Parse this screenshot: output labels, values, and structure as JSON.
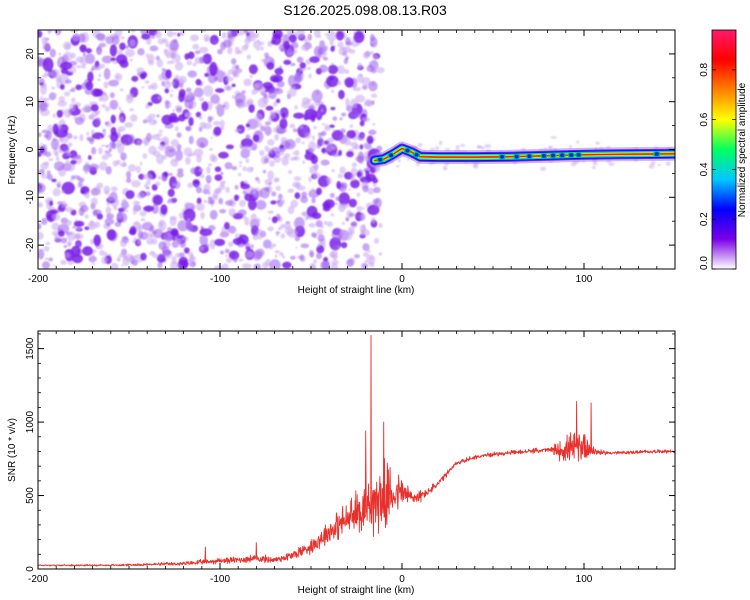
{
  "title": "S126.2025.098.08.13.R03",
  "colors": {
    "snr_line": "#e8302c",
    "noise": "#7a1ee8",
    "noise_light": "#c9a6f2",
    "frame": "#000000"
  },
  "chart_data": [
    {
      "type": "heatmap",
      "xlabel": "Height of straight line (km)",
      "ylabel": "Frequency (Hz)",
      "xlim": [
        -200,
        150
      ],
      "ylim": [
        -25,
        25
      ],
      "xticks": [
        -200,
        -100,
        0,
        100
      ],
      "xtick_labels": [
        "-200",
        "-100",
        "0",
        "100"
      ],
      "yticks": [
        -20,
        -10,
        0,
        10,
        20
      ],
      "ytick_labels": [
        "-20",
        "-10",
        "0",
        "10",
        "20"
      ],
      "colorbar": {
        "label": "Normalized spectral amplitude",
        "range": [
          0,
          0.96
        ],
        "ticks": [
          0,
          0.2,
          0.4,
          0.6,
          0.8
        ],
        "tick_labels": [
          "0.0",
          "0.2",
          "0.4",
          "0.6",
          "0.8"
        ],
        "colormap": [
          "#ffffff",
          "#7a00e6",
          "#0000ff",
          "#00c8ff",
          "#00ff60",
          "#ffff00",
          "#ff8000",
          "#ff0000",
          "#ff1a6e"
        ]
      },
      "noise_region_km": [
        -200,
        -15
      ],
      "signal_track": [
        {
          "km": -15,
          "hz": -2.3
        },
        {
          "km": -10,
          "hz": -2.0
        },
        {
          "km": -5,
          "hz": -1.0
        },
        {
          "km": 0,
          "hz": 0.2
        },
        {
          "km": 5,
          "hz": -0.5
        },
        {
          "km": 10,
          "hz": -1.5
        },
        {
          "km": 20,
          "hz": -1.6
        },
        {
          "km": 40,
          "hz": -1.6
        },
        {
          "km": 60,
          "hz": -1.5
        },
        {
          "km": 80,
          "hz": -1.3
        },
        {
          "km": 90,
          "hz": -1.2
        },
        {
          "km": 100,
          "hz": -1.1
        },
        {
          "km": 120,
          "hz": -1.0
        },
        {
          "km": 150,
          "hz": -0.9
        }
      ]
    },
    {
      "type": "line",
      "xlabel": "Height of straight line (km)",
      "ylabel": "SNR (10 * v/v)",
      "xlim": [
        -200,
        150
      ],
      "ylim": [
        0,
        1620
      ],
      "xticks": [
        -200,
        -100,
        0,
        100
      ],
      "xtick_labels": [
        "-200",
        "-100",
        "0",
        "100"
      ],
      "yticks": [
        0,
        500,
        1000,
        1500
      ],
      "ytick_labels": [
        "0",
        "500",
        "1000",
        "1500"
      ],
      "series": [
        {
          "x": [
            -200,
            -180,
            -160,
            -140,
            -120,
            -110,
            -100,
            -90,
            -80,
            -70,
            -60,
            -50,
            -40,
            -30,
            -25,
            -20,
            -15,
            -10,
            -5,
            0,
            5,
            10,
            15,
            20,
            25,
            30,
            40,
            50,
            60,
            70,
            80,
            85,
            90,
            95,
            100,
            105,
            110,
            120,
            130,
            140,
            150
          ],
          "y": [
            25,
            25,
            25,
            30,
            35,
            45,
            55,
            60,
            70,
            60,
            90,
            150,
            250,
            330,
            370,
            420,
            440,
            470,
            500,
            520,
            480,
            490,
            530,
            580,
            650,
            720,
            760,
            780,
            790,
            800,
            810,
            800,
            810,
            800,
            840,
            800,
            790,
            790,
            795,
            800,
            800
          ],
          "noise_amp": [
            8,
            8,
            10,
            15,
            22,
            30,
            35,
            40,
            50,
            40,
            60,
            90,
            150,
            200,
            260,
            300,
            380,
            400,
            280,
            200,
            120,
            70,
            50,
            40,
            35,
            30,
            25,
            25,
            25,
            25,
            30,
            90,
            160,
            200,
            220,
            60,
            25,
            20,
            20,
            20,
            20
          ],
          "spikes": [
            {
              "x": -108,
              "y": 150
            },
            {
              "x": -80,
              "y": 180
            },
            {
              "x": -20,
              "y": 940
            },
            {
              "x": -17,
              "y": 1590
            },
            {
              "x": -10,
              "y": 1000
            },
            {
              "x": 96,
              "y": 1140
            },
            {
              "x": 104,
              "y": 1130
            }
          ]
        }
      ]
    }
  ]
}
